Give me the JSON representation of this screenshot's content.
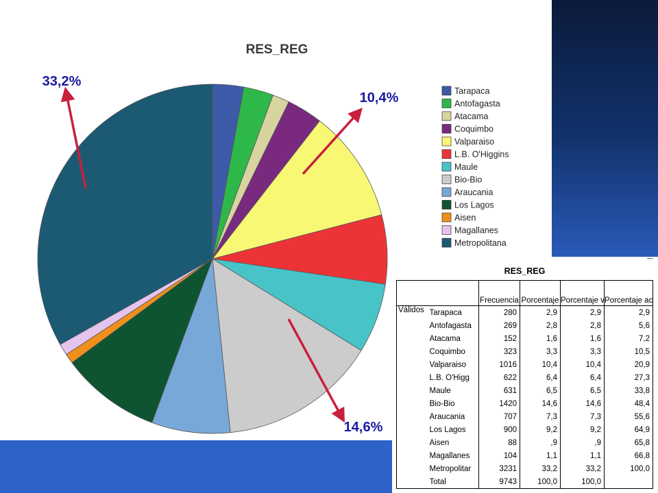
{
  "chart_data": {
    "type": "pie",
    "title": "RES_REG",
    "categories": [
      "Tarapaca",
      "Antofagasta",
      "Atacama",
      "Coquimbo",
      "Valparaiso",
      "L.B. O'Higgins",
      "Maule",
      "Bio-Bio",
      "Araucania",
      "Los Lagos",
      "Aisen",
      "Magallanes",
      "Metropolitana"
    ],
    "values": [
      280,
      269,
      152,
      323,
      1016,
      622,
      631,
      1420,
      707,
      900,
      88,
      104,
      3231
    ],
    "colors": [
      "#3c5aa8",
      "#2eb84a",
      "#d8d4a0",
      "#7a2a7e",
      "#f8f874",
      "#ec3438",
      "#48c4c8",
      "#cccccc",
      "#78a8d8",
      "#0e5430",
      "#f0901c",
      "#e4c4ec",
      "#1c5a74"
    ],
    "legend_position": "right",
    "annotations": [
      {
        "label": "33,2%",
        "category": "Metropolitana"
      },
      {
        "label": "10,4%",
        "category": "Valparaiso"
      },
      {
        "label": "14,6%",
        "category": "Bio-Bio"
      }
    ],
    "annotation_color": "#1a1aa0",
    "arrow_color": "#c8203c"
  },
  "table": {
    "title": "RES_REG",
    "headers": [
      "Frecuencia",
      "Porcentaje",
      "Porcentaje válido",
      "Porcentaje acumulado"
    ],
    "group_label": "Válidos",
    "rows": [
      {
        "label": "Tarapaca",
        "freq": "280",
        "pct": "2,9",
        "valid": "2,9",
        "cum": "2,9"
      },
      {
        "label": "Antofagasta",
        "freq": "269",
        "pct": "2,8",
        "valid": "2,8",
        "cum": "5,6"
      },
      {
        "label": "Atacama",
        "freq": "152",
        "pct": "1,6",
        "valid": "1,6",
        "cum": "7,2"
      },
      {
        "label": "Coquimbo",
        "freq": "323",
        "pct": "3,3",
        "valid": "3,3",
        "cum": "10,5"
      },
      {
        "label": "Valparaiso",
        "freq": "1016",
        "pct": "10,4",
        "valid": "10,4",
        "cum": "20,9"
      },
      {
        "label": "L.B. O'Higg",
        "freq": "622",
        "pct": "6,4",
        "valid": "6,4",
        "cum": "27,3"
      },
      {
        "label": "Maule",
        "freq": "631",
        "pct": "6,5",
        "valid": "6,5",
        "cum": "33,8"
      },
      {
        "label": "Bio-Bio",
        "freq": "1420",
        "pct": "14,6",
        "valid": "14,6",
        "cum": "48,4"
      },
      {
        "label": "Araucania",
        "freq": "707",
        "pct": "7,3",
        "valid": "7,3",
        "cum": "55,6"
      },
      {
        "label": "Los Lagos",
        "freq": "900",
        "pct": "9,2",
        "valid": "9,2",
        "cum": "64,9"
      },
      {
        "label": "Aisen",
        "freq": "88",
        "pct": ",9",
        "valid": ",9",
        "cum": "65,8"
      },
      {
        "label": "Magallanes",
        "freq": "104",
        "pct": "1,1",
        "valid": "1,1",
        "cum": "66,8"
      },
      {
        "label": "Metropolitar",
        "freq": "3231",
        "pct": "33,2",
        "valid": "33,2",
        "cum": "100,0"
      },
      {
        "label": "Total",
        "freq": "9743",
        "pct": "100,0",
        "valid": "100,0",
        "cum": ""
      }
    ]
  }
}
